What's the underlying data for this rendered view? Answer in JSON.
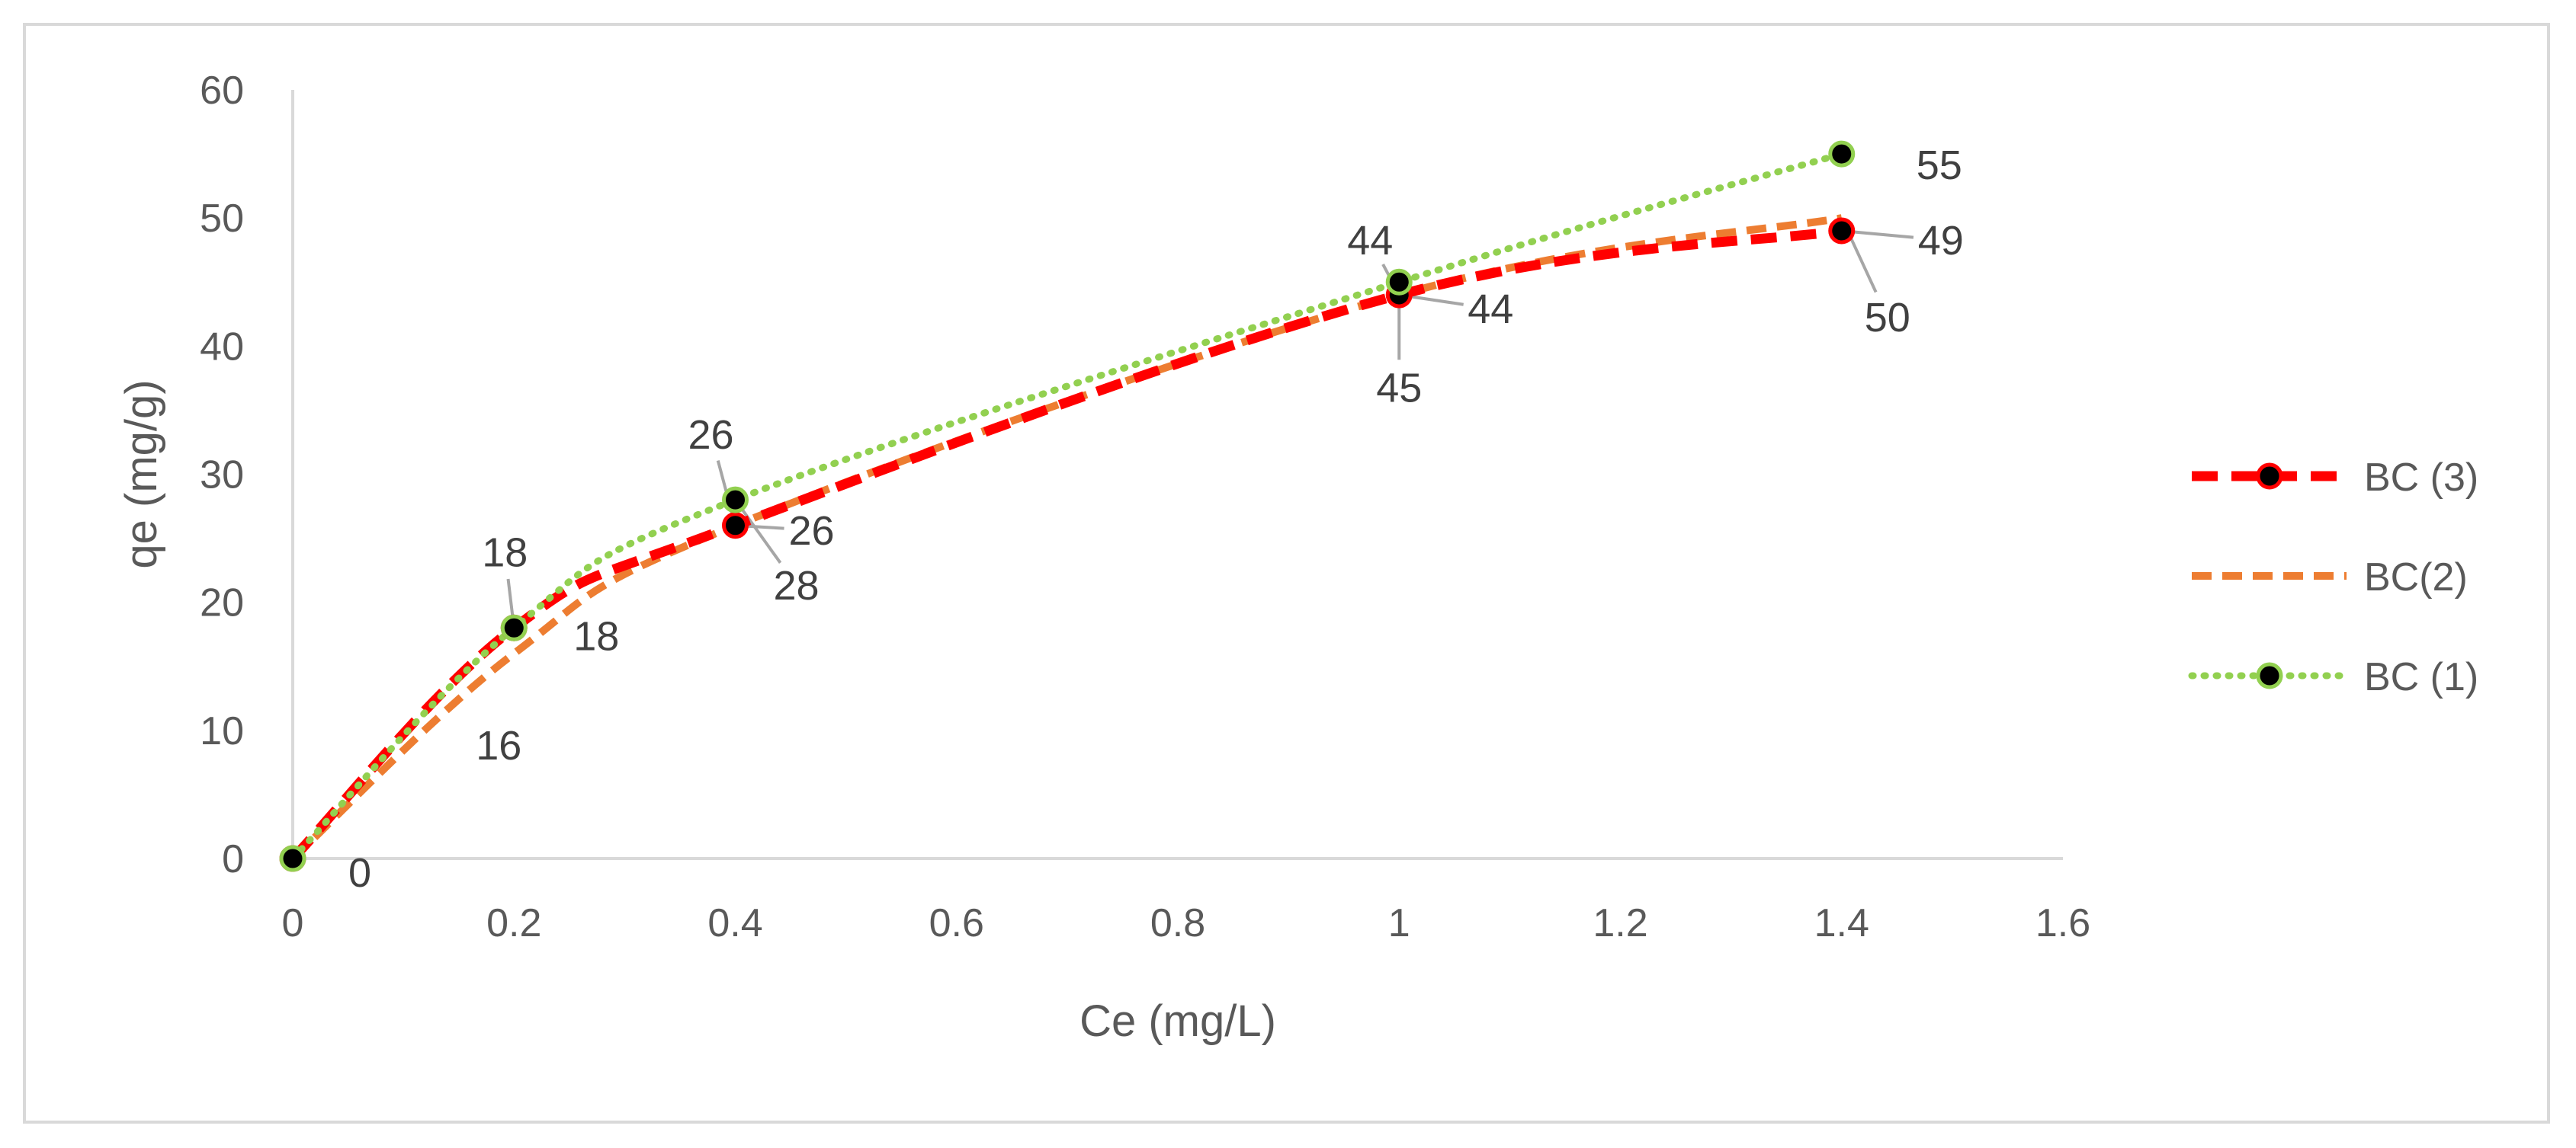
{
  "chart_data": {
    "type": "line",
    "title": "",
    "xlabel": "Ce (mg/L)",
    "ylabel": "qe (mg/g)",
    "xlim": [
      0,
      1.6
    ],
    "ylim": [
      0,
      60
    ],
    "x_ticks": [
      "0",
      "0.2",
      "0.4",
      "0.6",
      "0.8",
      "1",
      "1.2",
      "1.4",
      "1.6"
    ],
    "y_ticks": [
      "0",
      "10",
      "20",
      "30",
      "40",
      "50",
      "60"
    ],
    "grid": false,
    "legend_position": "right",
    "series": [
      {
        "name": "BC (3)",
        "color": "#ff0000",
        "dash": "dash",
        "marker_fill": "#000000",
        "marker_edge": "#ff0000",
        "points": [
          {
            "x": 0,
            "y": 0,
            "label": "0"
          },
          {
            "x": 0.2,
            "y": 18,
            "label": "18"
          },
          {
            "x": 0.4,
            "y": 26,
            "label": "26"
          },
          {
            "x": 1.0,
            "y": 44,
            "label": "44"
          },
          {
            "x": 1.4,
            "y": 49,
            "label": "49"
          }
        ]
      },
      {
        "name": "BC(2)",
        "color": "#ed7d31",
        "dash": "short-dash",
        "points": [
          {
            "x": 0,
            "y": 0,
            "label": ""
          },
          {
            "x": 0.2,
            "y": 16,
            "label": "16"
          },
          {
            "x": 0.4,
            "y": 26,
            "label": "26"
          },
          {
            "x": 1.0,
            "y": 44,
            "label": "44"
          },
          {
            "x": 1.4,
            "y": 50,
            "label": "50"
          }
        ]
      },
      {
        "name": "BC (1)",
        "color": "#92d050",
        "dash": "dot",
        "marker_fill": "#000000",
        "marker_edge": "#92d050",
        "points": [
          {
            "x": 0,
            "y": 0,
            "label": ""
          },
          {
            "x": 0.2,
            "y": 18,
            "label": "18"
          },
          {
            "x": 0.4,
            "y": 28,
            "label": "28"
          },
          {
            "x": 1.0,
            "y": 45,
            "label": "45"
          },
          {
            "x": 1.4,
            "y": 55,
            "label": "55"
          }
        ]
      }
    ]
  }
}
